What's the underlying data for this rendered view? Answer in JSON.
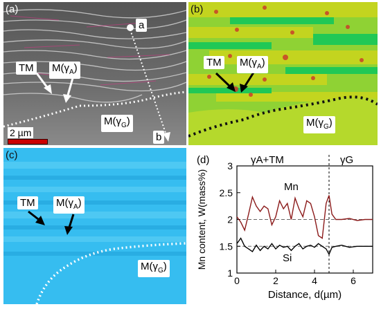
{
  "panels": {
    "a": {
      "label": "(a)",
      "tm_label": "TM",
      "ma_label_main": "M(γ",
      "ma_label_sub": "A",
      "mg_label_main": "M(γ",
      "mg_label_sub": "G",
      "point_a": "a",
      "point_b": "b",
      "scale_text": "2 µm"
    },
    "b": {
      "label": "(b)",
      "tm_label": "TM",
      "ma_label_main": "M(γ",
      "ma_label_sub": "A",
      "mg_label_main": "M(γ",
      "mg_label_sub": "G"
    },
    "c": {
      "label": "(c)",
      "tm_label": "TM",
      "ma_label_main": "M(γ",
      "ma_label_sub": "A",
      "mg_label_main": "M(γ",
      "mg_label_sub": "G"
    },
    "d": {
      "label": "(d)"
    }
  },
  "chart_data": {
    "type": "line",
    "xlabel": "Distance, d(µm)",
    "ylabel": "Mn content, W(mass%)",
    "xlim": [
      0,
      7
    ],
    "ylim": [
      1,
      3
    ],
    "xticks": [
      0,
      2,
      4,
      6
    ],
    "yticks": [
      1,
      1.5,
      2,
      2.5,
      3
    ],
    "region_left": "γA+TM",
    "region_right": "γG",
    "boundary_x": 4.75,
    "reference_lines": [
      2.0,
      1.5
    ],
    "series": [
      {
        "name": "Mn",
        "color": "#8b1a1a",
        "x": [
          0,
          0.2,
          0.4,
          0.6,
          0.8,
          1.0,
          1.2,
          1.4,
          1.6,
          1.8,
          2.0,
          2.2,
          2.4,
          2.6,
          2.8,
          3.0,
          3.2,
          3.4,
          3.6,
          3.8,
          4.0,
          4.2,
          4.4,
          4.6,
          4.75,
          4.9,
          5.1,
          5.4,
          5.8,
          6.2,
          6.6,
          7.0
        ],
        "values": [
          2.05,
          1.95,
          1.8,
          2.1,
          2.42,
          2.25,
          2.15,
          2.25,
          2.2,
          1.9,
          2.05,
          2.35,
          2.2,
          2.3,
          2.0,
          2.4,
          2.2,
          2.05,
          2.35,
          2.3,
          2.05,
          1.7,
          1.65,
          2.3,
          2.45,
          2.1,
          2.0,
          2.0,
          2.02,
          1.98,
          2.0,
          2.0
        ]
      },
      {
        "name": "Si",
        "color": "#000000",
        "x": [
          0,
          0.2,
          0.4,
          0.6,
          0.8,
          1.0,
          1.2,
          1.4,
          1.6,
          1.8,
          2.0,
          2.2,
          2.4,
          2.6,
          2.8,
          3.0,
          3.2,
          3.4,
          3.6,
          3.8,
          4.0,
          4.2,
          4.4,
          4.6,
          4.75,
          4.9,
          5.1,
          5.4,
          5.8,
          6.2,
          6.6,
          7.0
        ],
        "values": [
          1.55,
          1.65,
          1.5,
          1.45,
          1.4,
          1.52,
          1.42,
          1.5,
          1.45,
          1.55,
          1.45,
          1.52,
          1.48,
          1.5,
          1.42,
          1.5,
          1.55,
          1.45,
          1.5,
          1.52,
          1.48,
          1.55,
          1.5,
          1.45,
          1.35,
          1.48,
          1.5,
          1.52,
          1.48,
          1.5,
          1.5,
          1.5
        ]
      }
    ]
  }
}
